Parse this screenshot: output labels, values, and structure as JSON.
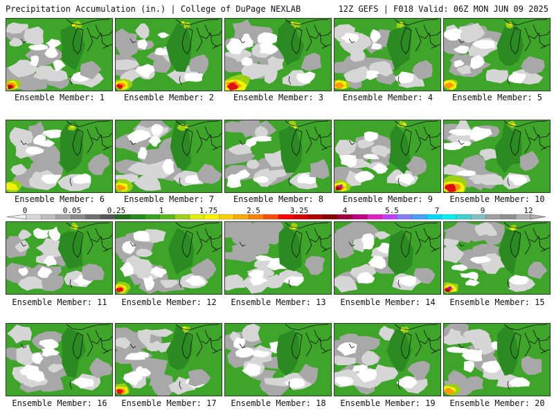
{
  "header": {
    "left_title": "Precipitation Accumulation (in.) | College of DuPage NEXLAB",
    "right_title": "12Z GEFS | F018 Valid: 06Z MON JUN 09 2025"
  },
  "panel_label_prefix": "Ensemble Member:",
  "members": [
    {
      "label": "Ensemble Member: 1",
      "heavy": "sw",
      "heavy_level": 4
    },
    {
      "label": "Ensemble Member: 2",
      "heavy": "sw",
      "heavy_level": 3
    },
    {
      "label": "Ensemble Member: 3",
      "heavy": "sw-big",
      "heavy_level": 3
    },
    {
      "label": "Ensemble Member: 4",
      "heavy": "sw",
      "heavy_level": 2
    },
    {
      "label": "Ensemble Member: 5",
      "heavy": "sw",
      "heavy_level": 2
    },
    {
      "label": "Ensemble Member: 6",
      "heavy": "sw",
      "heavy_level": 1
    },
    {
      "label": "Ensemble Member: 7",
      "heavy": "sw",
      "heavy_level": 2
    },
    {
      "label": "Ensemble Member: 8",
      "heavy": "none",
      "heavy_level": 0
    },
    {
      "label": "Ensemble Member: 9",
      "heavy": "sw-purple",
      "heavy_level": 5
    },
    {
      "label": "Ensemble Member: 10",
      "heavy": "sw-big",
      "heavy_level": 3
    },
    {
      "label": "Ensemble Member: 11",
      "heavy": "none",
      "heavy_level": 0
    },
    {
      "label": "Ensemble Member: 12",
      "heavy": "sw",
      "heavy_level": 3
    },
    {
      "label": "Ensemble Member: 13",
      "heavy": "none",
      "heavy_level": 0
    },
    {
      "label": "Ensemble Member: 14",
      "heavy": "none",
      "heavy_level": 0
    },
    {
      "label": "Ensemble Member: 15",
      "heavy": "sw-purple",
      "heavy_level": 5
    },
    {
      "label": "Ensemble Member: 16",
      "heavy": "none",
      "heavy_level": 0
    },
    {
      "label": "Ensemble Member: 17",
      "heavy": "sw",
      "heavy_level": 3
    },
    {
      "label": "Ensemble Member: 18",
      "heavy": "none",
      "heavy_level": 0
    },
    {
      "label": "Ensemble Member: 19",
      "heavy": "none",
      "heavy_level": 0
    },
    {
      "label": "Ensemble Member: 20",
      "heavy": "sw",
      "heavy_level": 2
    }
  ],
  "colorbar": {
    "labels": [
      "0",
      "0.05",
      "0.25",
      "1",
      "1.75",
      "2.5",
      "3.25",
      "4",
      "5.5",
      "7",
      "9",
      "12"
    ],
    "colors": [
      "#d8d8d8",
      "#bdbdbd",
      "#a3a3a3",
      "#8a8a8a",
      "#707070",
      "#575757",
      "#1f6e1f",
      "#288a1e",
      "#37a21f",
      "#5cb71d",
      "#9bd014",
      "#e0ee0a",
      "#fff200",
      "#ffd000",
      "#ffa800",
      "#ff7f00",
      "#ff4c00",
      "#ff0000",
      "#d90000",
      "#b00000",
      "#8a0000",
      "#a00040",
      "#c00080",
      "#e020c0",
      "#c040ff",
      "#8080ff",
      "#4aa0ff",
      "#00d8ff",
      "#00f0f0",
      "#40d0d0",
      "#80c0c0",
      "#a0a0a0",
      "#909090",
      "#b0b0b0"
    ]
  },
  "map_colors": {
    "white": "#ffffff",
    "light_gray": "#d6d6d6",
    "mid_gray": "#a8a8a8",
    "dark_gray": "#7c7c7c",
    "dark_green": "#2b8a21",
    "green": "#3ea52a",
    "light_green": "#9bd014",
    "yellow": "#f1f20a",
    "orange": "#ff9a00",
    "red": "#e01010",
    "dark_red": "#9a0000",
    "purple": "#9a20c0",
    "coast": "#111111"
  }
}
